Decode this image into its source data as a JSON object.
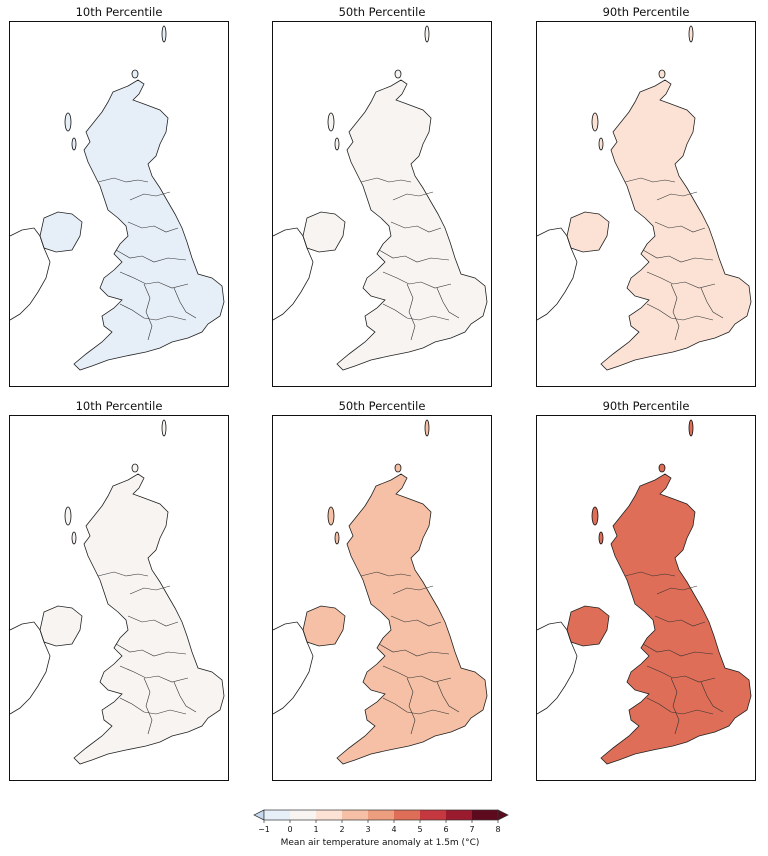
{
  "chart_data": {
    "type": "heatmap",
    "panels": [
      {
        "title": "10th Percentile",
        "value": 0.1
      },
      {
        "title": "50th Percentile",
        "value": 1.6
      },
      {
        "title": "90th Percentile",
        "value": 2.8
      },
      {
        "title": "10th Percentile",
        "value": 1.4
      },
      {
        "title": "50th Percentile",
        "value": 3.9
      },
      {
        "title": "90th Percentile",
        "value": 5.6
      }
    ],
    "colorbar": {
      "label": "Mean air temperature anomaly at 1.5m (°C)",
      "ticks": [
        "−1",
        "0",
        "1",
        "2",
        "3",
        "4",
        "5",
        "6",
        "7",
        "8"
      ],
      "min": -1,
      "max": 8,
      "colors": [
        "#c6d9ee",
        "#e6eef7",
        "#f7f4f2",
        "#fbe2d5",
        "#f5c0a5",
        "#ec9e7f",
        "#de6e57",
        "#c5383f",
        "#9a1b2e",
        "#5e0a1e"
      ]
    }
  }
}
